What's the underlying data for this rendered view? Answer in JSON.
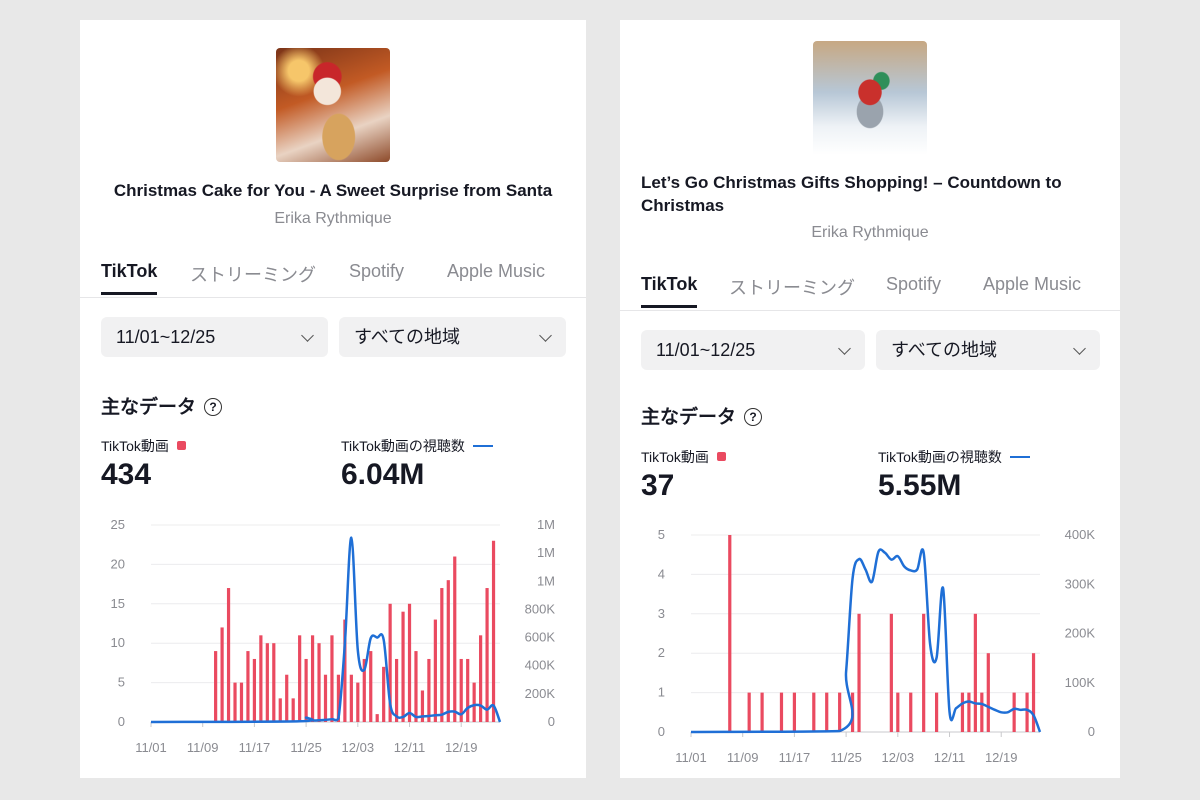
{
  "colors": {
    "bar": "#ea4a60",
    "line": "#1f6fd6",
    "text": "#161823",
    "muted": "#8a8b91"
  },
  "cards": [
    {
      "cover_icon": "santa-cake-artwork",
      "title": "Christmas Cake for You - A Sweet Surprise from Santa",
      "artist": "Erika Rythmique",
      "tabs": [
        {
          "label": "TikTok",
          "active": true
        },
        {
          "label": "ストリーミング"
        },
        {
          "label": "Spotify"
        },
        {
          "label": "Apple Music"
        }
      ],
      "date_range": "11/01~12/25",
      "region": "すべての地域",
      "section_title": "主なデータ",
      "help_icon": "?",
      "stats": [
        {
          "label": "TikTok動画",
          "value": "434",
          "legend": "bar"
        },
        {
          "label": "TikTok動画の視聴数",
          "value": "6.04M",
          "legend": "line"
        }
      ]
    },
    {
      "cover_icon": "shopping-cart-gifts-artwork",
      "title": "Let’s Go Christmas Gifts Shopping! – Countdown to Christmas",
      "artist": "Erika Rythmique",
      "tabs": [
        {
          "label": "TikTok",
          "active": true
        },
        {
          "label": "ストリーミング"
        },
        {
          "label": "Spotify"
        },
        {
          "label": "Apple Music"
        }
      ],
      "date_range": "11/01~12/25",
      "region": "すべての地域",
      "section_title": "主なデータ",
      "help_icon": "?",
      "stats": [
        {
          "label": "TikTok動画",
          "value": "37",
          "legend": "bar"
        },
        {
          "label": "TikTok動画の視聴数",
          "value": "5.55M",
          "legend": "line"
        }
      ]
    }
  ],
  "chart_data": [
    {
      "type": "bar+line",
      "x_start": "11/01",
      "x_end": "12/25",
      "x_ticks": [
        "11/01",
        "11/09",
        "11/17",
        "11/25",
        "12/03",
        "12/11",
        "12/19"
      ],
      "y_left_ticks": [
        "0",
        "5",
        "10",
        "15",
        "20",
        "25"
      ],
      "y_left_range": [
        0,
        25
      ],
      "y_right_ticks": [
        "0",
        "200K",
        "400K",
        "600K",
        "800K",
        "1M",
        "1M",
        "1M"
      ],
      "y_right_range": [
        0,
        1400000
      ],
      "grid": true,
      "bars": {
        "name": "TikTok動画",
        "dates": [
          "11/11",
          "11/12",
          "11/13",
          "11/14",
          "11/15",
          "11/16",
          "11/17",
          "11/18",
          "11/19",
          "11/20",
          "11/21",
          "11/22",
          "11/23",
          "11/24",
          "11/25",
          "11/26",
          "11/27",
          "11/28",
          "11/29",
          "11/30",
          "12/01",
          "12/02",
          "12/03",
          "12/04",
          "12/05",
          "12/06",
          "12/07",
          "12/08",
          "12/09",
          "12/10",
          "12/11",
          "12/12",
          "12/13",
          "12/14",
          "12/15",
          "12/16",
          "12/17",
          "12/18",
          "12/19",
          "12/20",
          "12/21",
          "12/22",
          "12/23",
          "12/24"
        ],
        "values": [
          9,
          12,
          17,
          5,
          5,
          9,
          8,
          11,
          10,
          10,
          3,
          6,
          3,
          11,
          8,
          11,
          10,
          6,
          11,
          6,
          13,
          6,
          5,
          8,
          9,
          1,
          7,
          15,
          8,
          14,
          15,
          9,
          4,
          8,
          13,
          17,
          18,
          21,
          8,
          8,
          5,
          11,
          17,
          23
        ]
      },
      "line": {
        "name": "TikTok動画の視聴数",
        "dates": [
          "11/01",
          "11/24",
          "11/25",
          "11/26",
          "11/27",
          "11/28",
          "11/29",
          "11/30",
          "12/01",
          "12/02",
          "12/03",
          "12/04",
          "12/05",
          "12/06",
          "12/07",
          "12/08",
          "12/09",
          "12/10",
          "12/11",
          "12/12",
          "12/13",
          "12/14",
          "12/15",
          "12/16",
          "12/17",
          "12/18",
          "12/19",
          "12/20",
          "12/21",
          "12/22",
          "12/23",
          "12/24",
          "12/25"
        ],
        "values": [
          0,
          5000,
          31000,
          12000,
          12000,
          15000,
          20000,
          25000,
          560000,
          1310000,
          510000,
          370000,
          596000,
          600000,
          585000,
          130000,
          40000,
          36000,
          64000,
          36000,
          40000,
          43000,
          48000,
          52000,
          72000,
          74000,
          55000,
          100000,
          120000,
          117000,
          88000,
          117000,
          0
        ]
      }
    },
    {
      "type": "bar+line",
      "x_start": "11/01",
      "x_end": "12/25",
      "x_ticks": [
        "11/01",
        "11/09",
        "11/17",
        "11/25",
        "12/03",
        "12/11",
        "12/19"
      ],
      "y_left_ticks": [
        "0",
        "1",
        "2",
        "3",
        "4",
        "5"
      ],
      "y_left_range": [
        0,
        5
      ],
      "y_right_ticks": [
        "0",
        "100K",
        "200K",
        "300K",
        "400K"
      ],
      "y_right_range": [
        0,
        400000
      ],
      "grid": true,
      "bars": {
        "name": "TikTok動画",
        "dates": [
          "11/07",
          "11/10",
          "11/12",
          "11/15",
          "11/17",
          "11/20",
          "11/22",
          "11/24",
          "11/26",
          "11/27",
          "12/02",
          "12/03",
          "12/05",
          "12/07",
          "12/09",
          "12/13",
          "12/14",
          "12/15",
          "12/16",
          "12/17",
          "12/21",
          "12/23",
          "12/24"
        ],
        "values": [
          5,
          1,
          1,
          1,
          1,
          1,
          1,
          1,
          1,
          3,
          3,
          1,
          1,
          3,
          1,
          1,
          1,
          3,
          1,
          2,
          1,
          1,
          2
        ]
      },
      "line": {
        "name": "TikTok動画の視聴数",
        "dates": [
          "11/01",
          "11/24",
          "11/25",
          "11/26",
          "11/27",
          "11/28",
          "11/29",
          "11/30",
          "12/01",
          "12/02",
          "12/03",
          "12/04",
          "12/05",
          "12/06",
          "12/07",
          "12/08",
          "12/09",
          "12/10",
          "12/11",
          "12/12",
          "12/13",
          "12/14",
          "12/15",
          "12/16",
          "12/17",
          "12/18",
          "12/19",
          "12/20",
          "12/21",
          "12/22",
          "12/23",
          "12/24",
          "12/25"
        ],
        "values": [
          0,
          2000,
          123000,
          312000,
          351000,
          330000,
          305000,
          366000,
          364000,
          350000,
          357000,
          336000,
          328000,
          330000,
          364000,
          178000,
          151000,
          292000,
          41000,
          48000,
          58000,
          62000,
          58000,
          57000,
          51000,
          45000,
          40000,
          40000,
          47000,
          45000,
          45000,
          34000,
          0
        ]
      }
    }
  ]
}
